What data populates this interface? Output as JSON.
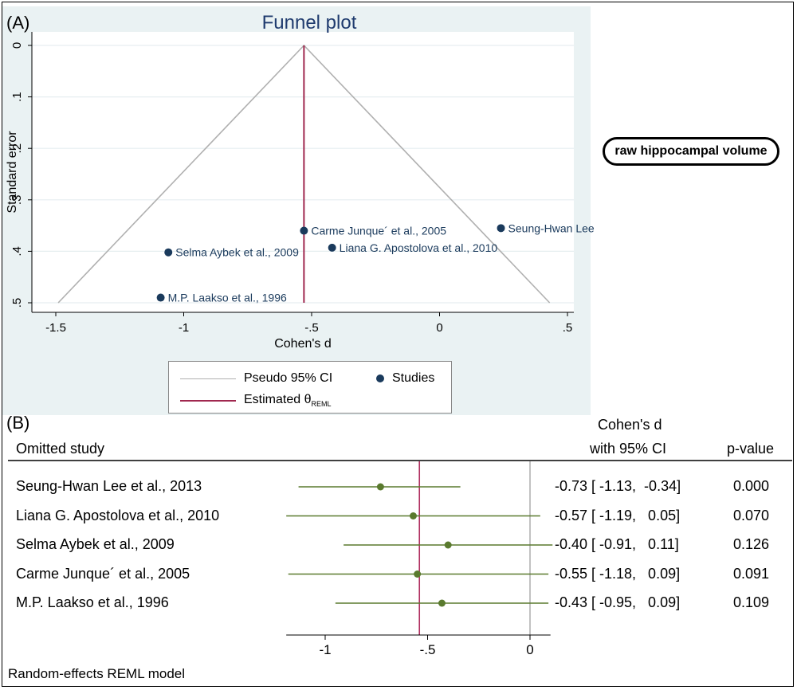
{
  "panel_a": {
    "label": "(A)",
    "callout": "raw hippocampal volume",
    "legend": {
      "ci_label": "Pseudo 95% CI",
      "studies_label": "Studies",
      "estimate_label": "Estimated θ",
      "estimate_sub": "REML"
    }
  },
  "panel_b": {
    "label": "(B)",
    "col_study": "Omitted study",
    "col_effect_line1": "Cohen's d",
    "col_effect_line2": "with 95% CI",
    "col_p": "p-value",
    "footnote": "Random-effects REML model",
    "rows": [
      {
        "study": "Seung-Hwan Lee et al., 2013",
        "ci_text": "-0.73 [ -1.13,  -0.34]",
        "p": "0.000"
      },
      {
        "study": "Liana G. Apostolova et al., 2010",
        "ci_text": "-0.57 [ -1.19,   0.05]",
        "p": "0.070"
      },
      {
        "study": "Selma Aybek et al., 2009",
        "ci_text": "-0.40 [ -0.91,   0.11]",
        "p": "0.126"
      },
      {
        "study": "Carme Junque´ et al., 2005",
        "ci_text": "-0.55 [ -1.18,   0.09]",
        "p": "0.091"
      },
      {
        "study": "M.P. Laakso et al., 1996",
        "ci_text": "-0.43 [ -0.95,   0.09]",
        "p": "0.109"
      }
    ]
  },
  "chart_data": [
    {
      "type": "scatter",
      "title": "Funnel plot",
      "xlabel": "Cohen's d",
      "ylabel": "Standard error",
      "xlim": [
        -1.5,
        0.5
      ],
      "ylim": [
        0.5,
        0
      ],
      "y_reversed": true,
      "xticks": [
        -1.5,
        -1,
        -0.5,
        0,
        0.5
      ],
      "xtick_labels": [
        "-1.5",
        "-1",
        "-.5",
        "0",
        ".5"
      ],
      "yticks": [
        0,
        0.1,
        0.2,
        0.3,
        0.4,
        0.5
      ],
      "ytick_labels": [
        "0",
        ".1",
        ".2",
        ".3",
        ".4",
        ".5"
      ],
      "grid": true,
      "estimate": -0.53,
      "points": [
        {
          "label": "Seung-Hwan Lee",
          "x": 0.24,
          "se": 0.355
        },
        {
          "label": "Carme Junque´ et al., 2005",
          "x": -0.53,
          "se": 0.36
        },
        {
          "label": "Liana G. Apostolova et al., 2010",
          "x": -0.42,
          "se": 0.393
        },
        {
          "label": "Selma Aybek et al., 2009",
          "x": -1.06,
          "se": 0.402
        },
        {
          "label": "M.P. Laakso et al., 1996",
          "x": -1.09,
          "se": 0.49
        }
      ],
      "colors": {
        "points": "#1a3a5c",
        "ci": "#b0b0b0",
        "estimate": "#a0284f",
        "background": "#eaf2f3"
      }
    },
    {
      "type": "forest",
      "xlim": [
        -1.19,
        0.1
      ],
      "xticks": [
        -1,
        -0.5,
        0
      ],
      "xtick_labels": [
        "-1",
        "-.5",
        "0"
      ],
      "overall": -0.54,
      "values": [
        {
          "est": -0.73,
          "lo": -1.13,
          "hi": -0.34
        },
        {
          "est": -0.57,
          "lo": -1.19,
          "hi": 0.05
        },
        {
          "est": -0.4,
          "lo": -0.91,
          "hi": 0.11
        },
        {
          "est": -0.55,
          "lo": -1.18,
          "hi": 0.09
        },
        {
          "est": -0.43,
          "lo": -0.95,
          "hi": 0.09
        }
      ],
      "colors": {
        "ci": "#5a7a2e",
        "overall": "#b03060",
        "null": "#999999"
      }
    }
  ]
}
